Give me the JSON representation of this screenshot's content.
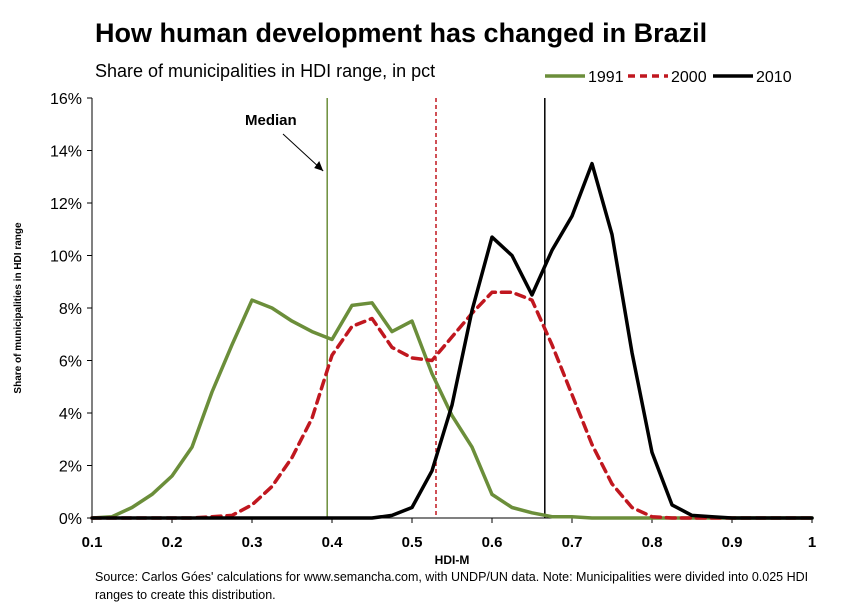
{
  "chart_data": {
    "type": "line",
    "title": "How human development has changed in Brazil",
    "subtitle": "Share of municipalities in HDI range, in pct",
    "xlabel": "HDI-M",
    "ylabel": "Share of municipalities in HDI range",
    "xlim": [
      0.1,
      1
    ],
    "ylim": [
      0,
      16
    ],
    "x_ticks": [
      "0.1",
      "0.2",
      "0.3",
      "0.4",
      "0.5",
      "0.6",
      "0.7",
      "0.8",
      "0.9",
      "1"
    ],
    "y_ticks": [
      "0%",
      "2%",
      "4%",
      "6%",
      "8%",
      "10%",
      "12%",
      "14%",
      "16%"
    ],
    "legend_position": "top-right",
    "gridlines": false,
    "annotation": "Median",
    "series": [
      {
        "name": "1991",
        "color": "#6b8e3a",
        "dash": "solid",
        "median": 0.394,
        "x": [
          0.1,
          0.125,
          0.15,
          0.175,
          0.2,
          0.225,
          0.25,
          0.275,
          0.3,
          0.325,
          0.35,
          0.375,
          0.4,
          0.425,
          0.45,
          0.475,
          0.5,
          0.525,
          0.55,
          0.575,
          0.6,
          0.625,
          0.65,
          0.675,
          0.7,
          0.725,
          0.75,
          0.775,
          0.8,
          0.825,
          0.85,
          0.875,
          0.9,
          0.925,
          0.95,
          0.975,
          1.0
        ],
        "values": [
          0,
          0.05,
          0.4,
          0.9,
          1.6,
          2.7,
          4.8,
          6.6,
          8.3,
          8.0,
          7.5,
          7.1,
          6.8,
          8.1,
          8.2,
          7.1,
          7.5,
          5.5,
          3.9,
          2.7,
          0.9,
          0.4,
          0.2,
          0.05,
          0.05,
          0,
          0,
          0,
          0,
          0,
          0,
          0,
          0,
          0,
          0,
          0,
          0
        ]
      },
      {
        "name": "2000",
        "color": "#c0171f",
        "dash": "dashed",
        "median": 0.53,
        "x": [
          0.1,
          0.125,
          0.15,
          0.175,
          0.2,
          0.225,
          0.25,
          0.275,
          0.3,
          0.325,
          0.35,
          0.375,
          0.4,
          0.425,
          0.45,
          0.475,
          0.5,
          0.525,
          0.55,
          0.575,
          0.6,
          0.625,
          0.65,
          0.675,
          0.7,
          0.725,
          0.75,
          0.775,
          0.8,
          0.825,
          0.85,
          0.875,
          0.9,
          0.925,
          0.95,
          0.975,
          1.0
        ],
        "values": [
          0,
          0,
          0,
          0,
          0,
          0,
          0.05,
          0.1,
          0.5,
          1.2,
          2.3,
          3.8,
          6.2,
          7.3,
          7.6,
          6.5,
          6.1,
          6.0,
          6.9,
          7.8,
          8.6,
          8.6,
          8.3,
          6.6,
          4.7,
          2.8,
          1.3,
          0.4,
          0.05,
          0,
          0,
          0,
          0,
          0,
          0,
          0,
          0
        ]
      },
      {
        "name": "2010",
        "color": "#000000",
        "dash": "solid",
        "median": 0.666,
        "x": [
          0.1,
          0.125,
          0.15,
          0.175,
          0.2,
          0.225,
          0.25,
          0.275,
          0.3,
          0.325,
          0.35,
          0.375,
          0.4,
          0.425,
          0.45,
          0.475,
          0.5,
          0.525,
          0.55,
          0.575,
          0.6,
          0.625,
          0.65,
          0.675,
          0.7,
          0.725,
          0.75,
          0.775,
          0.8,
          0.825,
          0.85,
          0.875,
          0.9,
          0.925,
          0.95,
          0.975,
          1.0
        ],
        "values": [
          0,
          0,
          0,
          0,
          0,
          0,
          0,
          0,
          0,
          0,
          0,
          0,
          0,
          0,
          0,
          0.1,
          0.4,
          1.8,
          4.3,
          7.9,
          10.7,
          10.0,
          8.5,
          10.2,
          11.5,
          13.5,
          10.8,
          6.3,
          2.5,
          0.5,
          0.1,
          0.05,
          0,
          0,
          0,
          0,
          0
        ]
      }
    ]
  },
  "source_note": "Source:  Carlos Góes' calculations for www.semancha.com, with UNDP/UN data.  Note:  Municipalities were divided into 0.025 HDI ranges  to create this distribution."
}
